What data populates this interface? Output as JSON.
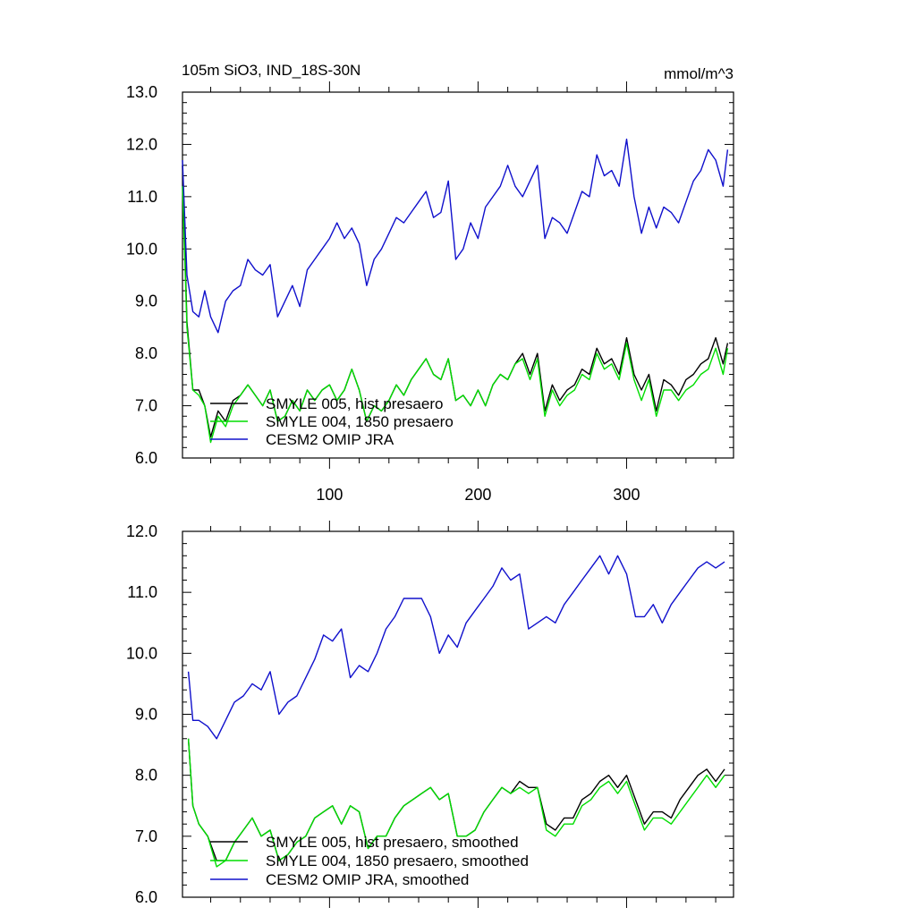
{
  "figure": {
    "title_left": "105m SiO3, IND_18S-30N",
    "title_right": "mmol/m^3"
  },
  "colors": {
    "black": "#000000",
    "green": "#00dd00",
    "blue": "#1010cc"
  },
  "chart_data": [
    {
      "type": "line",
      "title": "105m SiO3, IND_18S-30N",
      "units": "mmol/m^3",
      "xlim": [
        1,
        372
      ],
      "ylim": [
        6.0,
        13.0
      ],
      "x_ticks": [
        "100",
        "200",
        "300"
      ],
      "y_ticks": [
        "6.0",
        "7.0",
        "8.0",
        "9.0",
        "10.0",
        "11.0",
        "12.0",
        "13.0"
      ],
      "legend_position": "lower-left",
      "series": [
        {
          "name": "SMYLE 005, hist presaero",
          "color": "#000000",
          "x": [
            1,
            4,
            8,
            12,
            16,
            20,
            25,
            30,
            35,
            40,
            45,
            50,
            55,
            60,
            65,
            70,
            75,
            80,
            85,
            90,
            95,
            100,
            105,
            110,
            115,
            120,
            125,
            130,
            135,
            140,
            145,
            150,
            155,
            160,
            165,
            170,
            175,
            180,
            185,
            190,
            195,
            200,
            205,
            210,
            215,
            220,
            225,
            230,
            235,
            240,
            245,
            250,
            255,
            260,
            265,
            270,
            275,
            280,
            285,
            290,
            295,
            300,
            305,
            310,
            315,
            320,
            325,
            330,
            335,
            340,
            345,
            350,
            355,
            360,
            365,
            368
          ],
          "y": [
            11.6,
            8.6,
            7.3,
            7.3,
            7.0,
            6.4,
            6.9,
            6.7,
            7.1,
            7.2,
            7.4,
            7.2,
            7.0,
            7.3,
            6.7,
            6.8,
            7.1,
            6.9,
            7.3,
            7.1,
            7.3,
            7.4,
            7.1,
            7.3,
            7.7,
            7.3,
            6.7,
            7.0,
            6.9,
            7.1,
            7.4,
            7.2,
            7.5,
            7.7,
            7.9,
            7.6,
            7.5,
            7.9,
            7.1,
            7.2,
            7.0,
            7.3,
            7.0,
            7.4,
            7.6,
            7.5,
            7.8,
            8.0,
            7.6,
            8.0,
            6.9,
            7.4,
            7.1,
            7.3,
            7.4,
            7.7,
            7.6,
            8.1,
            7.8,
            7.9,
            7.6,
            8.3,
            7.6,
            7.3,
            7.6,
            6.9,
            7.5,
            7.4,
            7.2,
            7.5,
            7.6,
            7.8,
            7.9,
            8.3,
            7.8,
            8.2
          ]
        },
        {
          "name": "SMYLE 004, 1850 presaero",
          "color": "#00dd00",
          "x": [
            1,
            4,
            8,
            12,
            16,
            20,
            25,
            30,
            35,
            40,
            45,
            50,
            55,
            60,
            65,
            70,
            75,
            80,
            85,
            90,
            95,
            100,
            105,
            110,
            115,
            120,
            125,
            130,
            135,
            140,
            145,
            150,
            155,
            160,
            165,
            170,
            175,
            180,
            185,
            190,
            195,
            200,
            205,
            210,
            215,
            220,
            225,
            230,
            235,
            240,
            245,
            250,
            255,
            260,
            265,
            270,
            275,
            280,
            285,
            290,
            295,
            300,
            305,
            310,
            315,
            320,
            325,
            330,
            335,
            340,
            345,
            350,
            355,
            360,
            365,
            368
          ],
          "y": [
            11.2,
            8.5,
            7.3,
            7.2,
            7.0,
            6.3,
            6.8,
            6.6,
            7.0,
            7.2,
            7.4,
            7.2,
            7.0,
            7.3,
            6.7,
            6.8,
            7.1,
            6.9,
            7.3,
            7.1,
            7.3,
            7.4,
            7.1,
            7.3,
            7.7,
            7.3,
            6.7,
            7.0,
            6.9,
            7.1,
            7.4,
            7.2,
            7.5,
            7.7,
            7.9,
            7.6,
            7.5,
            7.9,
            7.1,
            7.2,
            7.0,
            7.3,
            7.0,
            7.4,
            7.6,
            7.5,
            7.8,
            7.9,
            7.5,
            7.9,
            6.8,
            7.3,
            7.0,
            7.2,
            7.3,
            7.6,
            7.5,
            8.0,
            7.7,
            7.8,
            7.5,
            8.2,
            7.5,
            7.1,
            7.5,
            6.8,
            7.3,
            7.3,
            7.1,
            7.3,
            7.4,
            7.6,
            7.7,
            8.1,
            7.6,
            8.1
          ]
        },
        {
          "name": "CESM2 OMIP JRA",
          "color": "#1010cc",
          "x": [
            1,
            4,
            8,
            12,
            16,
            20,
            25,
            30,
            35,
            40,
            45,
            50,
            55,
            60,
            65,
            70,
            75,
            80,
            85,
            90,
            95,
            100,
            105,
            110,
            115,
            120,
            125,
            130,
            135,
            140,
            145,
            150,
            155,
            160,
            165,
            170,
            175,
            180,
            185,
            190,
            195,
            200,
            205,
            210,
            215,
            220,
            225,
            230,
            235,
            240,
            245,
            250,
            255,
            260,
            265,
            270,
            275,
            280,
            285,
            290,
            295,
            300,
            305,
            310,
            315,
            320,
            325,
            330,
            335,
            340,
            345,
            350,
            355,
            360,
            365,
            368
          ],
          "y": [
            11.7,
            9.5,
            8.8,
            8.7,
            9.2,
            8.7,
            8.4,
            9.0,
            9.2,
            9.3,
            9.8,
            9.6,
            9.5,
            9.7,
            8.7,
            9.0,
            9.3,
            8.9,
            9.6,
            9.8,
            10.0,
            10.2,
            10.5,
            10.2,
            10.4,
            10.1,
            9.3,
            9.8,
            10.0,
            10.3,
            10.6,
            10.5,
            10.7,
            10.9,
            11.1,
            10.6,
            10.7,
            11.3,
            9.8,
            10.0,
            10.5,
            10.2,
            10.8,
            11.0,
            11.2,
            11.6,
            11.2,
            11.0,
            11.3,
            11.6,
            10.2,
            10.6,
            10.5,
            10.3,
            10.7,
            11.1,
            11.0,
            11.8,
            11.4,
            11.5,
            11.2,
            12.1,
            11.0,
            10.3,
            10.8,
            10.4,
            10.8,
            10.7,
            10.5,
            10.9,
            11.3,
            11.5,
            11.9,
            11.7,
            11.2,
            11.9
          ]
        }
      ]
    },
    {
      "type": "line",
      "xlim": [
        1,
        372
      ],
      "ylim": [
        6.0,
        12.0
      ],
      "y_ticks": [
        "6.0",
        "7.0",
        "8.0",
        "9.0",
        "10.0",
        "11.0",
        "12.0"
      ],
      "legend_position": "lower-left",
      "series": [
        {
          "name": "SMYLE 005, hist presaero, smoothed",
          "color": "#000000",
          "x": [
            5,
            8,
            12,
            18,
            24,
            30,
            36,
            42,
            48,
            54,
            60,
            66,
            72,
            78,
            84,
            90,
            96,
            102,
            108,
            114,
            120,
            126,
            132,
            138,
            144,
            150,
            156,
            162,
            168,
            174,
            180,
            186,
            192,
            198,
            204,
            210,
            216,
            222,
            228,
            234,
            240,
            246,
            252,
            258,
            264,
            270,
            276,
            282,
            288,
            294,
            300,
            306,
            312,
            318,
            324,
            330,
            336,
            342,
            348,
            354,
            360,
            366
          ],
          "y": [
            8.6,
            7.5,
            7.2,
            7.0,
            6.6,
            6.6,
            6.9,
            7.1,
            7.3,
            7.0,
            7.1,
            6.6,
            6.7,
            6.9,
            7.0,
            7.3,
            7.4,
            7.5,
            7.2,
            7.5,
            7.4,
            6.8,
            7.0,
            7.0,
            7.3,
            7.5,
            7.6,
            7.7,
            7.8,
            7.6,
            7.7,
            7.0,
            7.0,
            7.1,
            7.4,
            7.6,
            7.8,
            7.7,
            7.9,
            7.8,
            7.8,
            7.2,
            7.1,
            7.3,
            7.3,
            7.6,
            7.7,
            7.9,
            8.0,
            7.8,
            8.0,
            7.6,
            7.2,
            7.4,
            7.4,
            7.3,
            7.6,
            7.8,
            8.0,
            8.1,
            7.9,
            8.1
          ]
        },
        {
          "name": "SMYLE 004, 1850 presaero, smoothed",
          "color": "#00dd00",
          "x": [
            5,
            8,
            12,
            18,
            24,
            30,
            36,
            42,
            48,
            54,
            60,
            66,
            72,
            78,
            84,
            90,
            96,
            102,
            108,
            114,
            120,
            126,
            132,
            138,
            144,
            150,
            156,
            162,
            168,
            174,
            180,
            186,
            192,
            198,
            204,
            210,
            216,
            222,
            228,
            234,
            240,
            246,
            252,
            258,
            264,
            270,
            276,
            282,
            288,
            294,
            300,
            306,
            312,
            318,
            324,
            330,
            336,
            342,
            348,
            354,
            360,
            366
          ],
          "y": [
            8.6,
            7.5,
            7.2,
            7.0,
            6.5,
            6.6,
            6.9,
            7.1,
            7.3,
            7.0,
            7.1,
            6.6,
            6.7,
            6.9,
            7.0,
            7.3,
            7.4,
            7.5,
            7.2,
            7.5,
            7.4,
            6.8,
            7.0,
            7.0,
            7.3,
            7.5,
            7.6,
            7.7,
            7.8,
            7.6,
            7.7,
            7.0,
            7.0,
            7.1,
            7.4,
            7.6,
            7.8,
            7.7,
            7.8,
            7.7,
            7.8,
            7.1,
            7.0,
            7.2,
            7.2,
            7.5,
            7.6,
            7.8,
            7.9,
            7.7,
            7.9,
            7.5,
            7.1,
            7.3,
            7.3,
            7.2,
            7.4,
            7.6,
            7.8,
            8.0,
            7.8,
            8.0
          ]
        },
        {
          "name": "CESM2 OMIP JRA, smoothed",
          "color": "#1010cc",
          "x": [
            5,
            8,
            12,
            18,
            24,
            30,
            36,
            42,
            48,
            54,
            60,
            66,
            72,
            78,
            84,
            90,
            96,
            102,
            108,
            114,
            120,
            126,
            132,
            138,
            144,
            150,
            156,
            162,
            168,
            174,
            180,
            186,
            192,
            198,
            204,
            210,
            216,
            222,
            228,
            234,
            240,
            246,
            252,
            258,
            264,
            270,
            276,
            282,
            288,
            294,
            300,
            306,
            312,
            318,
            324,
            330,
            336,
            342,
            348,
            354,
            360,
            366
          ],
          "y": [
            9.7,
            8.9,
            8.9,
            8.8,
            8.6,
            8.9,
            9.2,
            9.3,
            9.5,
            9.4,
            9.7,
            9.0,
            9.2,
            9.3,
            9.6,
            9.9,
            10.3,
            10.2,
            10.4,
            9.6,
            9.8,
            9.7,
            10.0,
            10.4,
            10.6,
            10.9,
            10.9,
            10.9,
            10.6,
            10.0,
            10.3,
            10.1,
            10.5,
            10.7,
            10.9,
            11.1,
            11.4,
            11.2,
            11.3,
            10.4,
            10.5,
            10.6,
            10.5,
            10.8,
            11.0,
            11.2,
            11.4,
            11.6,
            11.3,
            11.6,
            11.3,
            10.6,
            10.6,
            10.8,
            10.5,
            10.8,
            11.0,
            11.2,
            11.4,
            11.5,
            11.4,
            11.5
          ]
        }
      ]
    }
  ]
}
